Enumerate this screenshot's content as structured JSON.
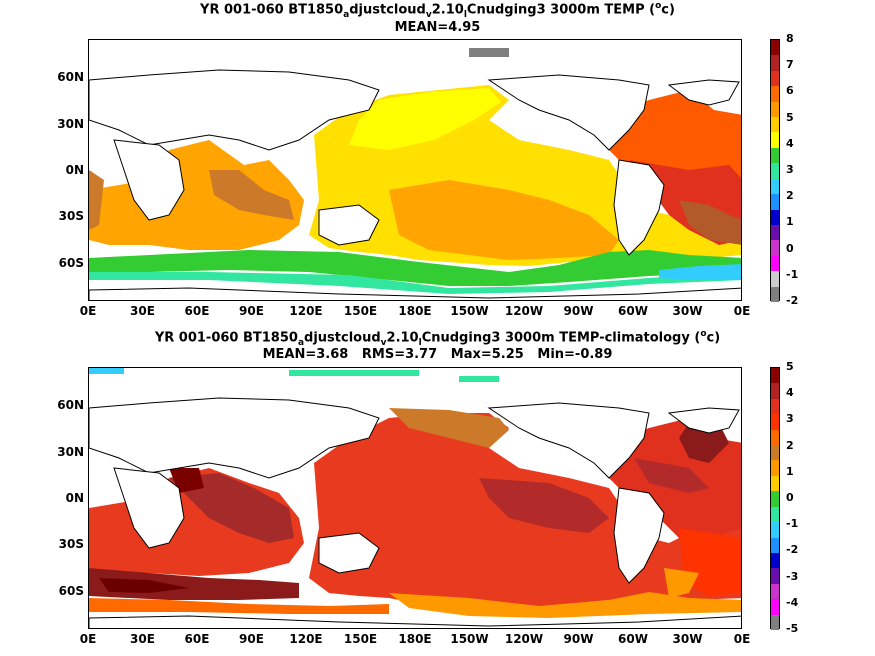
{
  "panels": [
    {
      "title_parts": {
        "pre": "YR 001-060 BT1850",
        "s1": "a",
        "mid1": "djustcloud",
        "s2": "v",
        "mid2": "2.10",
        "s3": "l",
        "post": "Cnudging3 3000m TEMP (",
        "sup": "o",
        "end": "c)"
      },
      "stats": "MEAN=4.95",
      "colorbar_labels": [
        "8",
        "7",
        "6",
        "5",
        "4",
        "3",
        "2",
        "1",
        "0",
        "-1",
        "-2"
      ],
      "colorbar_colors": [
        "#8b0000",
        "#b22222",
        "#e0301e",
        "#ff6a00",
        "#ff9900",
        "#ffcc00",
        "#ffff00",
        "#33cc33",
        "#33e6a0",
        "#33ccff",
        "#1e90ff",
        "#0000cc",
        "#6a0dad",
        "#cc33cc",
        "#ff00ff",
        "#cccccc",
        "#7f7f7f"
      ]
    },
    {
      "title_parts": {
        "pre": "YR 001-060 BT1850",
        "s1": "a",
        "mid1": "djustcloud",
        "s2": "v",
        "mid2": "2.10",
        "s3": "l",
        "post": "Cnudging3 3000m TEMP-climatology (",
        "sup": "o",
        "end": "c)"
      },
      "stats": "MEAN=3.68   RMS=3.77   Max=5.25   Min=-0.89",
      "colorbar_labels": [
        "5",
        "4",
        "3",
        "2",
        "1",
        "0",
        "-1",
        "-2",
        "-3",
        "-4",
        "-5"
      ],
      "colorbar_colors": [
        "#8b0000",
        "#b22222",
        "#e0301e",
        "#ff3300",
        "#ff6a00",
        "#cc7a2a",
        "#ff9900",
        "#ffcc00",
        "#33cc33",
        "#33e6a0",
        "#33ccff",
        "#1e90ff",
        "#0000cc",
        "#6a0dad",
        "#cc33cc",
        "#ff00ff",
        "#7f7f7f"
      ]
    }
  ],
  "x_ticks": [
    "0E",
    "30E",
    "60E",
    "90E",
    "120E",
    "150E",
    "180E",
    "150W",
    "120W",
    "90W",
    "60W",
    "30W",
    "0E"
  ],
  "y_ticks": [
    "60N",
    "30N",
    "0N",
    "30S",
    "60S"
  ]
}
